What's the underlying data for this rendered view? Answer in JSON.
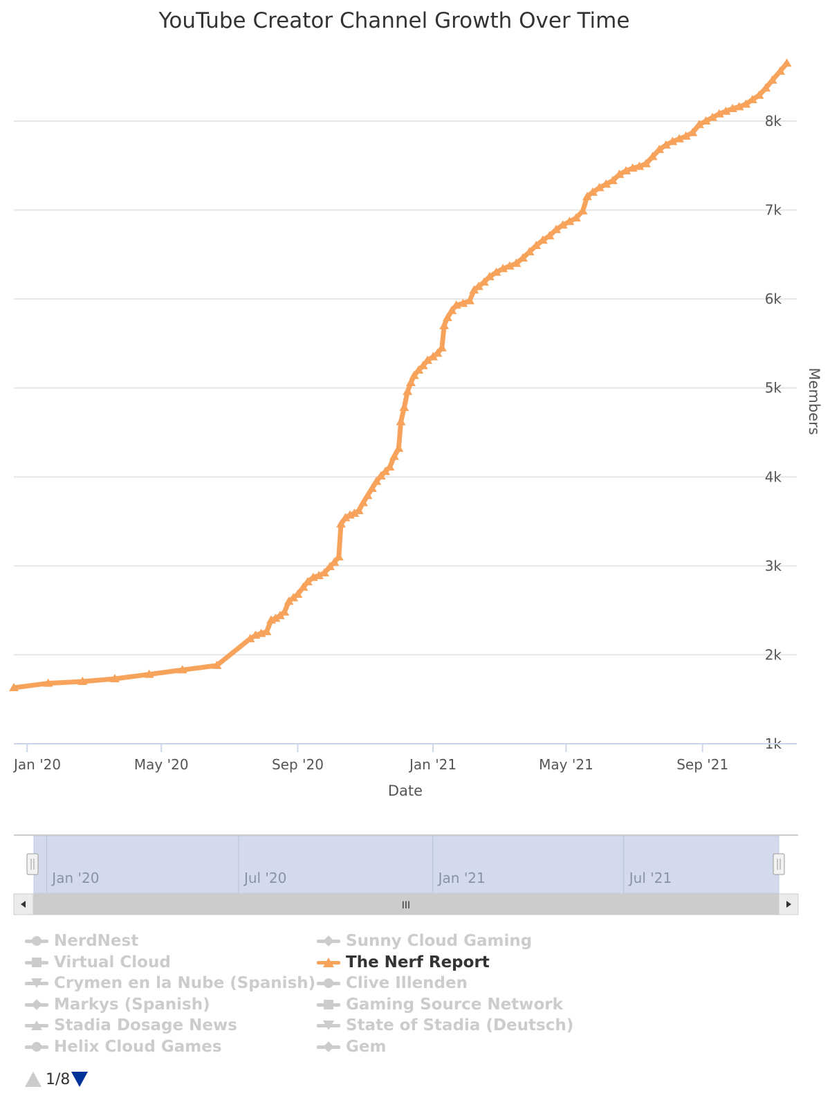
{
  "chart_data": {
    "type": "line",
    "title": "YouTube Creator Channel Growth Over Time",
    "xlabel": "Date",
    "ylabel": "Members",
    "x_range": [
      "2019-12-20",
      "2021-11-25"
    ],
    "ylim": [
      1000,
      8700
    ],
    "yticks": [
      1000,
      2000,
      3000,
      4000,
      5000,
      6000,
      7000,
      8000
    ],
    "ytick_labels": [
      "1k",
      "2k",
      "3k",
      "4k",
      "5k",
      "6k",
      "7k",
      "8k"
    ],
    "xticks": [
      "2020-01-01",
      "2020-05-01",
      "2020-09-01",
      "2021-01-01",
      "2021-05-01",
      "2021-09-01"
    ],
    "xtick_labels": [
      "Jan '20",
      "May '20",
      "Sep '20",
      "Jan '21",
      "May '21",
      "Sep '21"
    ],
    "grid": true,
    "y_axis_side": "right",
    "series": [
      {
        "name": "The Nerf Report",
        "color": "#f7a35c",
        "marker": "triangle",
        "visible": true,
        "points": [
          [
            "2019-12-20",
            1630
          ],
          [
            "2020-01-20",
            1680
          ],
          [
            "2020-02-20",
            1700
          ],
          [
            "2020-03-20",
            1730
          ],
          [
            "2020-04-20",
            1780
          ],
          [
            "2020-05-20",
            1830
          ],
          [
            "2020-06-20",
            1880
          ],
          [
            "2020-07-20",
            2180
          ],
          [
            "2020-07-25",
            2220
          ],
          [
            "2020-07-30",
            2240
          ],
          [
            "2020-08-04",
            2260
          ],
          [
            "2020-08-08",
            2390
          ],
          [
            "2020-08-12",
            2410
          ],
          [
            "2020-08-16",
            2440
          ],
          [
            "2020-08-20",
            2480
          ],
          [
            "2020-08-24",
            2600
          ],
          [
            "2020-08-28",
            2640
          ],
          [
            "2020-09-01",
            2680
          ],
          [
            "2020-09-06",
            2760
          ],
          [
            "2020-09-10",
            2820
          ],
          [
            "2020-09-15",
            2870
          ],
          [
            "2020-09-20",
            2890
          ],
          [
            "2020-09-25",
            2920
          ],
          [
            "2020-09-30",
            2990
          ],
          [
            "2020-10-04",
            3040
          ],
          [
            "2020-10-08",
            3100
          ],
          [
            "2020-10-10",
            3470
          ],
          [
            "2020-10-14",
            3540
          ],
          [
            "2020-10-18",
            3570
          ],
          [
            "2020-10-22",
            3590
          ],
          [
            "2020-10-26",
            3620
          ],
          [
            "2020-10-30",
            3710
          ],
          [
            "2020-11-03",
            3790
          ],
          [
            "2020-11-07",
            3870
          ],
          [
            "2020-11-11",
            3950
          ],
          [
            "2020-11-15",
            4010
          ],
          [
            "2020-11-19",
            4060
          ],
          [
            "2020-11-23",
            4110
          ],
          [
            "2020-11-27",
            4230
          ],
          [
            "2020-12-01",
            4320
          ],
          [
            "2020-12-03",
            4620
          ],
          [
            "2020-12-06",
            4780
          ],
          [
            "2020-12-09",
            4960
          ],
          [
            "2020-12-12",
            5060
          ],
          [
            "2020-12-15",
            5140
          ],
          [
            "2020-12-19",
            5200
          ],
          [
            "2020-12-23",
            5250
          ],
          [
            "2020-12-27",
            5310
          ],
          [
            "2021-01-01",
            5350
          ],
          [
            "2021-01-05",
            5390
          ],
          [
            "2021-01-09",
            5450
          ],
          [
            "2021-01-11",
            5700
          ],
          [
            "2021-01-14",
            5790
          ],
          [
            "2021-01-18",
            5870
          ],
          [
            "2021-01-22",
            5930
          ],
          [
            "2021-01-28",
            5950
          ],
          [
            "2021-02-03",
            5980
          ],
          [
            "2021-02-07",
            6100
          ],
          [
            "2021-02-11",
            6140
          ],
          [
            "2021-02-16",
            6190
          ],
          [
            "2021-02-21",
            6250
          ],
          [
            "2021-02-27",
            6300
          ],
          [
            "2021-03-05",
            6340
          ],
          [
            "2021-03-11",
            6370
          ],
          [
            "2021-03-17",
            6400
          ],
          [
            "2021-03-23",
            6460
          ],
          [
            "2021-03-29",
            6530
          ],
          [
            "2021-04-04",
            6600
          ],
          [
            "2021-04-10",
            6660
          ],
          [
            "2021-04-16",
            6710
          ],
          [
            "2021-04-22",
            6780
          ],
          [
            "2021-04-28",
            6830
          ],
          [
            "2021-05-04",
            6870
          ],
          [
            "2021-05-10",
            6910
          ],
          [
            "2021-05-16",
            6990
          ],
          [
            "2021-05-20",
            7150
          ],
          [
            "2021-05-25",
            7200
          ],
          [
            "2021-05-31",
            7250
          ],
          [
            "2021-06-06",
            7290
          ],
          [
            "2021-06-12",
            7330
          ],
          [
            "2021-06-18",
            7400
          ],
          [
            "2021-06-24",
            7440
          ],
          [
            "2021-06-30",
            7470
          ],
          [
            "2021-07-06",
            7490
          ],
          [
            "2021-07-12",
            7520
          ],
          [
            "2021-07-18",
            7600
          ],
          [
            "2021-07-24",
            7680
          ],
          [
            "2021-07-30",
            7730
          ],
          [
            "2021-08-05",
            7770
          ],
          [
            "2021-08-11",
            7800
          ],
          [
            "2021-08-17",
            7830
          ],
          [
            "2021-08-23",
            7870
          ],
          [
            "2021-08-29",
            7960
          ],
          [
            "2021-09-04",
            8000
          ],
          [
            "2021-09-10",
            8040
          ],
          [
            "2021-09-16",
            8080
          ],
          [
            "2021-09-22",
            8110
          ],
          [
            "2021-09-28",
            8140
          ],
          [
            "2021-10-04",
            8160
          ],
          [
            "2021-10-10",
            8190
          ],
          [
            "2021-10-16",
            8240
          ],
          [
            "2021-10-22",
            8290
          ],
          [
            "2021-10-28",
            8370
          ],
          [
            "2021-11-03",
            8460
          ],
          [
            "2021-11-10",
            8560
          ],
          [
            "2021-11-16",
            8650
          ]
        ]
      }
    ]
  },
  "navigator": {
    "labels": [
      "Jan '20",
      "Jul '20",
      "Jan '21",
      "Jul '21"
    ],
    "label_dates": [
      "2020-01-01",
      "2020-07-01",
      "2021-01-01",
      "2021-07-01"
    ],
    "scrollbar_grip": "III",
    "handle_glyph": "||"
  },
  "legend": {
    "items": [
      {
        "label": "NerdNest",
        "marker": "circle",
        "active": false
      },
      {
        "label": "Sunny Cloud Gaming",
        "marker": "diamond",
        "active": false
      },
      {
        "label": "Virtual Cloud",
        "marker": "square",
        "active": false
      },
      {
        "label": "The Nerf Report",
        "marker": "triangle",
        "active": true
      },
      {
        "label": "Crymen en la Nube (Spanish)",
        "marker": "triangle-down",
        "active": false
      },
      {
        "label": "Clive Illenden",
        "marker": "circle",
        "active": false
      },
      {
        "label": "Markys (Spanish)",
        "marker": "diamond",
        "active": false
      },
      {
        "label": "Gaming Source Network",
        "marker": "square",
        "active": false
      },
      {
        "label": "Stadia Dosage News",
        "marker": "triangle",
        "active": false
      },
      {
        "label": "State of Stadia (Deutsch)",
        "marker": "triangle-down",
        "active": false
      },
      {
        "label": "Helix Cloud Games",
        "marker": "circle",
        "active": false
      },
      {
        "label": "Gem",
        "marker": "diamond",
        "active": false
      }
    ],
    "page_indicator": "1/8"
  }
}
